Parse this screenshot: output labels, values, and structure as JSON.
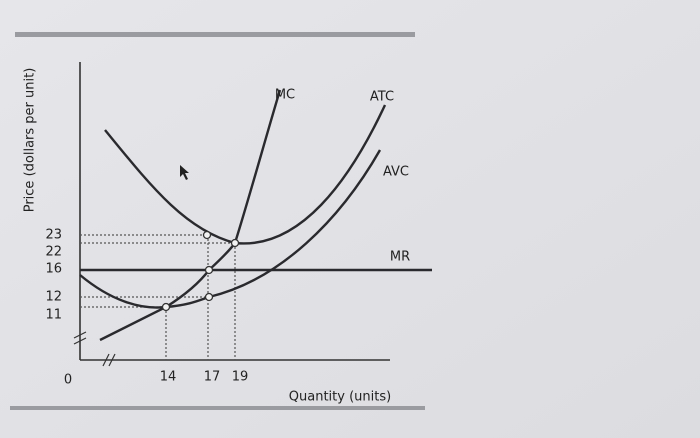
{
  "y_axis": {
    "label": "Price (dollars per unit)",
    "ticks": [
      "23",
      "22",
      "16",
      "12",
      "11"
    ]
  },
  "x_axis": {
    "label": "Quantity (units)",
    "origin": "0",
    "ticks": [
      "14",
      "17",
      "19"
    ]
  },
  "curves": [
    "MC",
    "ATC",
    "AVC",
    "MR"
  ]
}
